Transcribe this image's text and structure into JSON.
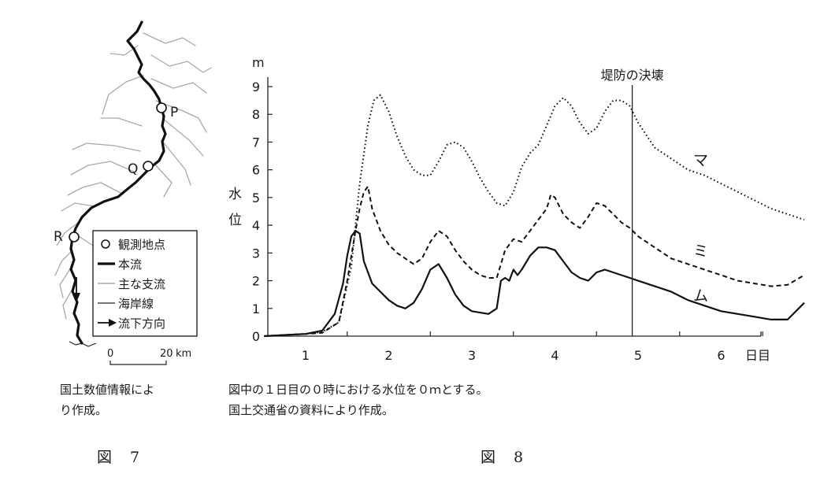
{
  "figure7": {
    "points": [
      {
        "label": "P"
      },
      {
        "label": "Q"
      },
      {
        "label": "R"
      }
    ],
    "legend": [
      {
        "label": "観測地点",
        "icon": "circle-marker-icon"
      },
      {
        "label": "本流",
        "icon": "thick-line-icon"
      },
      {
        "label": "主な支流",
        "icon": "gray-line-icon"
      },
      {
        "label": "海岸線",
        "icon": "thin-line-icon"
      },
      {
        "label": "流下方向",
        "icon": "arrow-icon"
      }
    ],
    "scale": {
      "zero": "0",
      "max": "20",
      "unit": "km"
    },
    "caption_line1": "国土数値情報によ",
    "caption_line2": "り作成。",
    "figure_label": "図　7",
    "colors": {
      "main_river": "#111111",
      "tributary": "#a9a9a9",
      "coast": "#222222"
    }
  },
  "figure8": {
    "caption_line1": "図中の１日目の０時における水位を０ｍとする。",
    "caption_line2": "国土交通省の資料により作成。",
    "figure_label": "図　8",
    "chart_data": {
      "type": "line",
      "ylabel": "水位",
      "yunit": "m",
      "xunit": "日目",
      "xlim": [
        0.5,
        7.0
      ],
      "ylim": [
        0,
        9
      ],
      "xticks": [
        1,
        2,
        3,
        4,
        5,
        6
      ],
      "yticks": [
        0,
        1,
        2,
        3,
        4,
        5,
        6,
        7,
        8,
        9
      ],
      "annotation": {
        "label": "堤防の決壊",
        "x": 4.93
      },
      "series": [
        {
          "name": "マ",
          "style": "dotted",
          "x": [
            0.5,
            0.8,
            1.0,
            1.2,
            1.4,
            1.55,
            1.65,
            1.75,
            1.82,
            1.9,
            2.0,
            2.1,
            2.2,
            2.3,
            2.4,
            2.5,
            2.6,
            2.7,
            2.8,
            2.9,
            3.0,
            3.1,
            3.2,
            3.3,
            3.4,
            3.5,
            3.6,
            3.7,
            3.8,
            3.9,
            4.0,
            4.1,
            4.2,
            4.3,
            4.4,
            4.5,
            4.6,
            4.7,
            4.8,
            4.9,
            5.0,
            5.2,
            5.4,
            5.6,
            5.8,
            6.0,
            6.2,
            6.4,
            6.6,
            6.8,
            7.0
          ],
          "y": [
            0,
            0.05,
            0.08,
            0.15,
            0.5,
            2.5,
            5.5,
            7.6,
            8.5,
            8.7,
            8.1,
            7.2,
            6.5,
            6.0,
            5.8,
            5.8,
            6.3,
            6.9,
            7.0,
            6.8,
            6.3,
            5.7,
            5.2,
            4.8,
            4.7,
            5.2,
            6.1,
            6.6,
            6.9,
            7.6,
            8.3,
            8.6,
            8.3,
            7.7,
            7.3,
            7.5,
            8.1,
            8.5,
            8.5,
            8.3,
            7.7,
            6.8,
            6.4,
            6.0,
            5.8,
            5.5,
            5.2,
            4.9,
            4.6,
            4.4,
            4.2
          ]
        },
        {
          "name": "ミ",
          "style": "dashed",
          "x": [
            0.5,
            0.8,
            1.0,
            1.2,
            1.4,
            1.5,
            1.6,
            1.65,
            1.7,
            1.75,
            1.8,
            1.9,
            2.0,
            2.1,
            2.2,
            2.3,
            2.4,
            2.5,
            2.6,
            2.7,
            2.8,
            2.9,
            3.0,
            3.1,
            3.2,
            3.3,
            3.4,
            3.5,
            3.6,
            3.7,
            3.8,
            3.9,
            3.95,
            4.0,
            4.1,
            4.2,
            4.3,
            4.4,
            4.5,
            4.6,
            4.7,
            4.8,
            4.9,
            5.0,
            5.2,
            5.4,
            5.6,
            5.8,
            6.0,
            6.2,
            6.4,
            6.6,
            6.8,
            7.0
          ],
          "y": [
            0,
            0.05,
            0.08,
            0.12,
            0.5,
            2.0,
            3.8,
            4.6,
            5.2,
            5.4,
            4.6,
            3.8,
            3.3,
            3.0,
            2.8,
            2.6,
            2.8,
            3.4,
            3.8,
            3.6,
            3.1,
            2.7,
            2.4,
            2.2,
            2.1,
            2.1,
            3.1,
            3.5,
            3.4,
            3.8,
            4.2,
            4.6,
            5.1,
            5.0,
            4.4,
            4.1,
            3.9,
            4.3,
            4.8,
            4.7,
            4.4,
            4.1,
            3.9,
            3.6,
            3.2,
            2.8,
            2.6,
            2.4,
            2.2,
            2.0,
            1.9,
            1.8,
            1.85,
            2.2
          ]
        },
        {
          "name": "ム",
          "style": "solid",
          "x": [
            0.5,
            0.8,
            1.0,
            1.2,
            1.35,
            1.45,
            1.5,
            1.55,
            1.6,
            1.65,
            1.7,
            1.8,
            1.9,
            2.0,
            2.1,
            2.2,
            2.3,
            2.4,
            2.5,
            2.6,
            2.7,
            2.8,
            2.9,
            3.0,
            3.1,
            3.2,
            3.3,
            3.35,
            3.4,
            3.45,
            3.5,
            3.55,
            3.6,
            3.7,
            3.8,
            3.9,
            4.0,
            4.1,
            4.2,
            4.3,
            4.4,
            4.5,
            4.6,
            4.7,
            4.8,
            4.9,
            5.0,
            5.2,
            5.4,
            5.6,
            5.8,
            6.0,
            6.2,
            6.4,
            6.6,
            6.8,
            7.0
          ],
          "y": [
            0,
            0.05,
            0.08,
            0.2,
            0.8,
            1.9,
            2.9,
            3.6,
            3.8,
            3.7,
            2.7,
            1.9,
            1.6,
            1.3,
            1.1,
            1.0,
            1.2,
            1.7,
            2.4,
            2.6,
            2.1,
            1.5,
            1.1,
            0.9,
            0.85,
            0.8,
            1.0,
            2.0,
            2.1,
            2.0,
            2.4,
            2.2,
            2.4,
            2.9,
            3.2,
            3.2,
            3.1,
            2.7,
            2.3,
            2.1,
            2.0,
            2.3,
            2.4,
            2.3,
            2.2,
            2.1,
            2.0,
            1.8,
            1.6,
            1.3,
            1.1,
            0.9,
            0.8,
            0.7,
            0.6,
            0.6,
            1.2
          ]
        }
      ]
    }
  }
}
